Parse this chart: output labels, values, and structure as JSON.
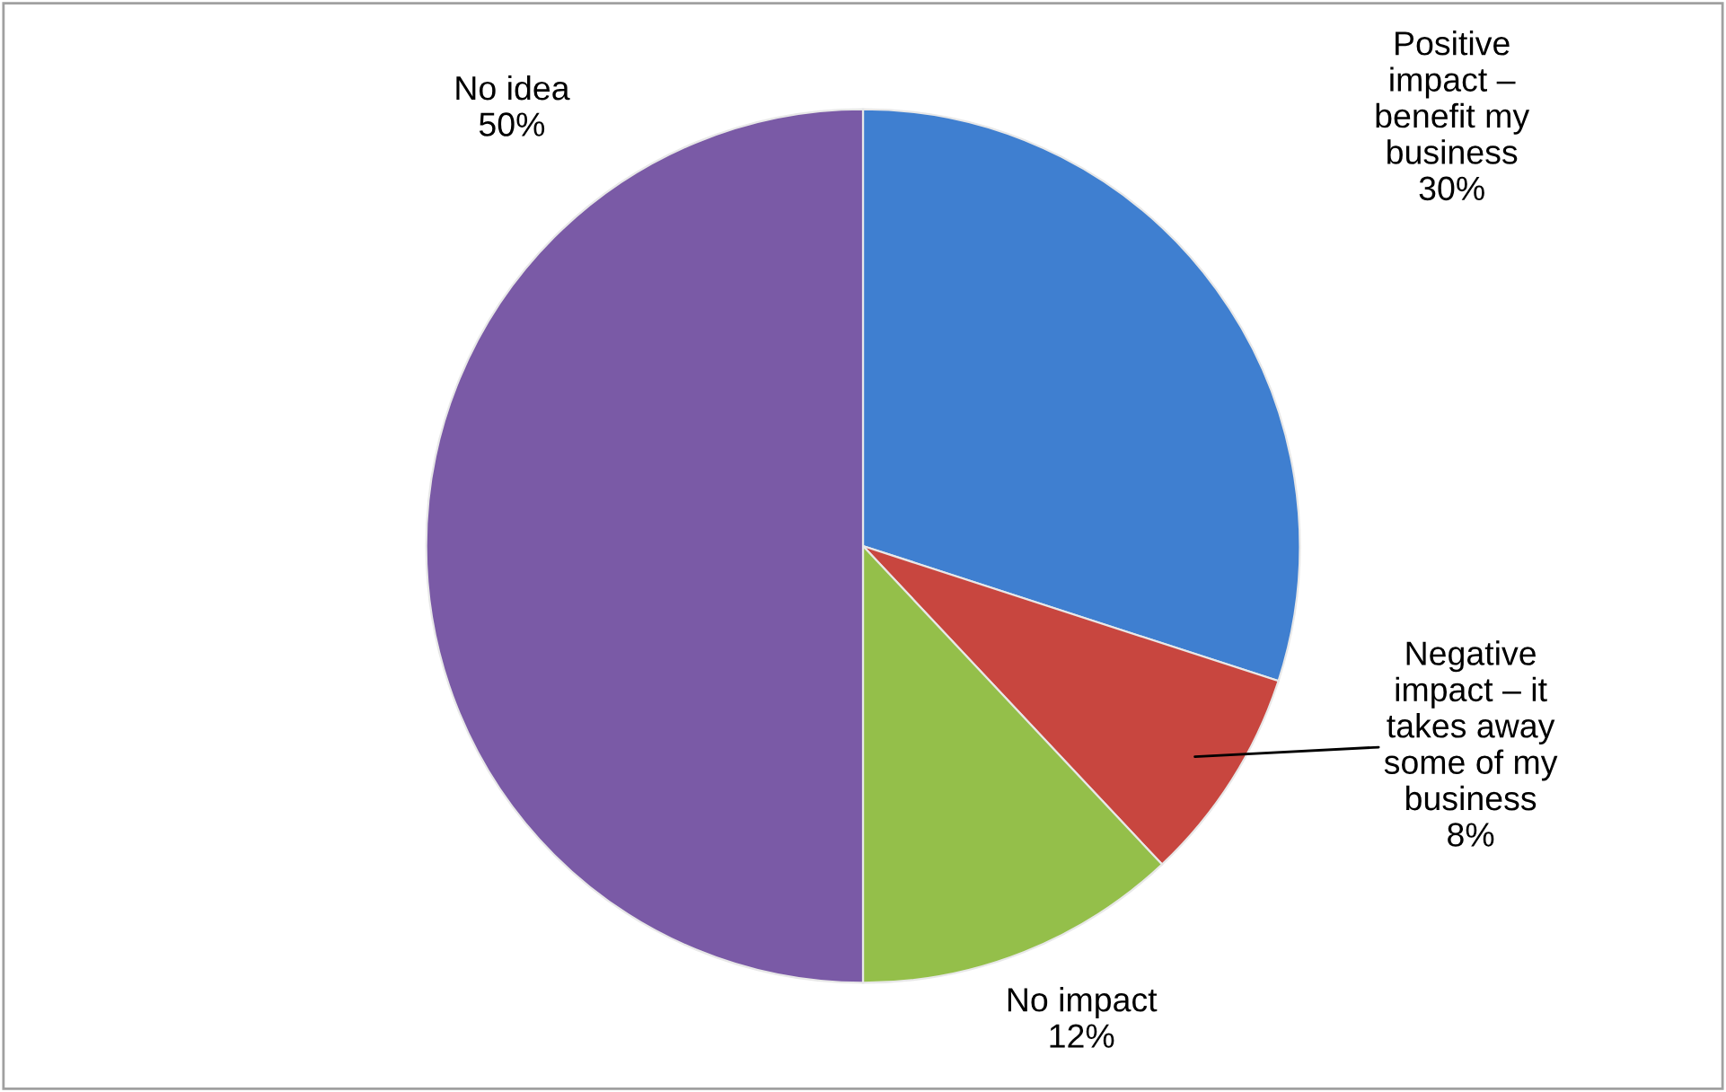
{
  "chart_data": {
    "type": "pie",
    "categories": [
      "Positive\nimpact –\nbenefit my\nbusiness",
      "Negative\nimpact – it\ntakes away\nsome of my\nbusiness",
      "No impact",
      "No idea"
    ],
    "values": [
      30,
      8,
      12,
      50
    ],
    "colors": [
      "#3f7fd0",
      "#c8463f",
      "#94bf4a",
      "#7a5aa6"
    ],
    "value_labels": [
      "30%",
      "8%",
      "12%",
      "50%"
    ],
    "legend": false
  }
}
